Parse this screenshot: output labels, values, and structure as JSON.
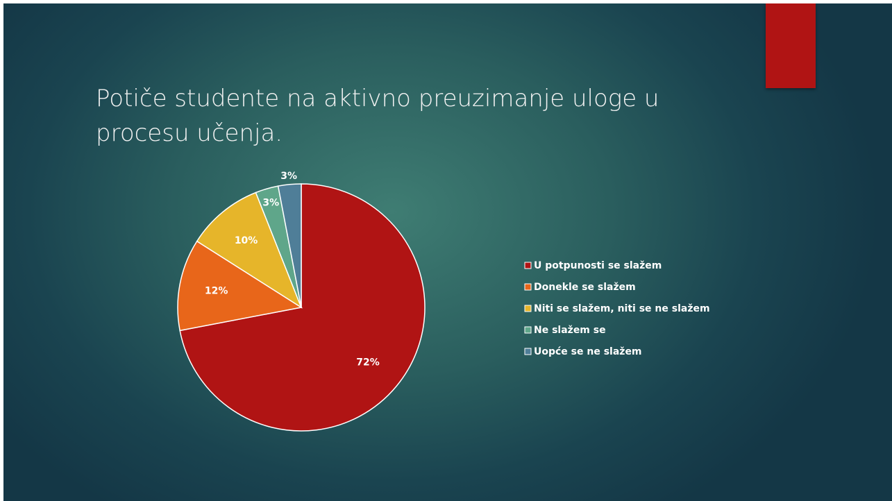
{
  "chart_data": {
    "type": "pie",
    "title": "Potiče studente na aktivno preuzimanje uloge u procesu učenja.",
    "categories": [
      "U potpunosti se slažem",
      "Donekle se slažem",
      "Niti se slažem, niti se ne slažem",
      "Ne slažem se",
      "Uopće se ne slažem"
    ],
    "values": [
      72,
      12,
      10,
      3,
      3
    ],
    "value_labels": [
      "72%",
      "12%",
      "10%",
      "3%",
      "3%"
    ],
    "colors": [
      "#b01414",
      "#e8661a",
      "#e6b52a",
      "#5fa68a",
      "#4f7e98"
    ],
    "legend": "right"
  }
}
